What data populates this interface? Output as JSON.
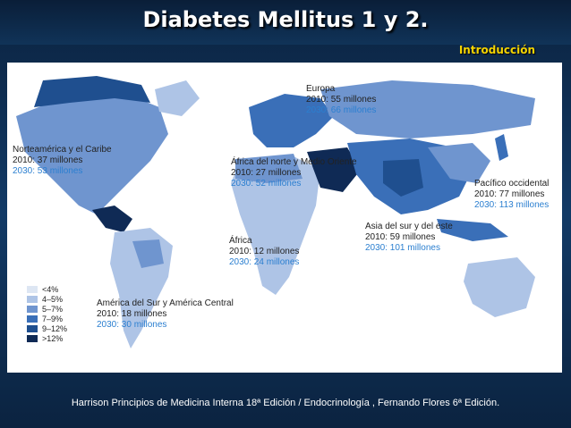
{
  "slide": {
    "title": "Diabetes Mellitus 1 y 2.",
    "subtitle": "Introducción",
    "footer": "Harrison Principios de Medicina Interna 18ª Edición /  Endocrinología , Fernando Flores 6ª Edición."
  },
  "map": {
    "regions": [
      {
        "name": "Norteamérica y el Caribe",
        "y2010": "2010: 37 millones",
        "y2030": "2030: 53 millones"
      },
      {
        "name": "Europa",
        "y2010": "2010: 55 millones",
        "y2030": "2030: 66 millones"
      },
      {
        "name": "África del norte y Medio Oriente",
        "y2010": "2010: 27 millones",
        "y2030": "2030: 52 millones"
      },
      {
        "name": "Pacífico occidental",
        "y2010": "2010: 77 millones",
        "y2030": "2030: 113 millones"
      },
      {
        "name": "Asia del sur y del este",
        "y2010": "2010: 59 millones",
        "y2030": "2030: 101 millones"
      },
      {
        "name": "África",
        "y2010": "2010: 12 millones",
        "y2030": "2030: 24 millones"
      },
      {
        "name": "América del Sur y América Central",
        "y2010": "2010: 18 millones",
        "y2030": "2030: 30 millones"
      }
    ],
    "legend": [
      {
        "label": "<4%",
        "color": "#dde6f3"
      },
      {
        "label": "4–5%",
        "color": "#aec4e6"
      },
      {
        "label": "5–7%",
        "color": "#6f95cf"
      },
      {
        "label": "7–9%",
        "color": "#3a6fb8"
      },
      {
        "label": "9–12%",
        "color": "#1f4f8f"
      },
      {
        "label": ">12%",
        "color": "#0f2a55"
      }
    ]
  }
}
